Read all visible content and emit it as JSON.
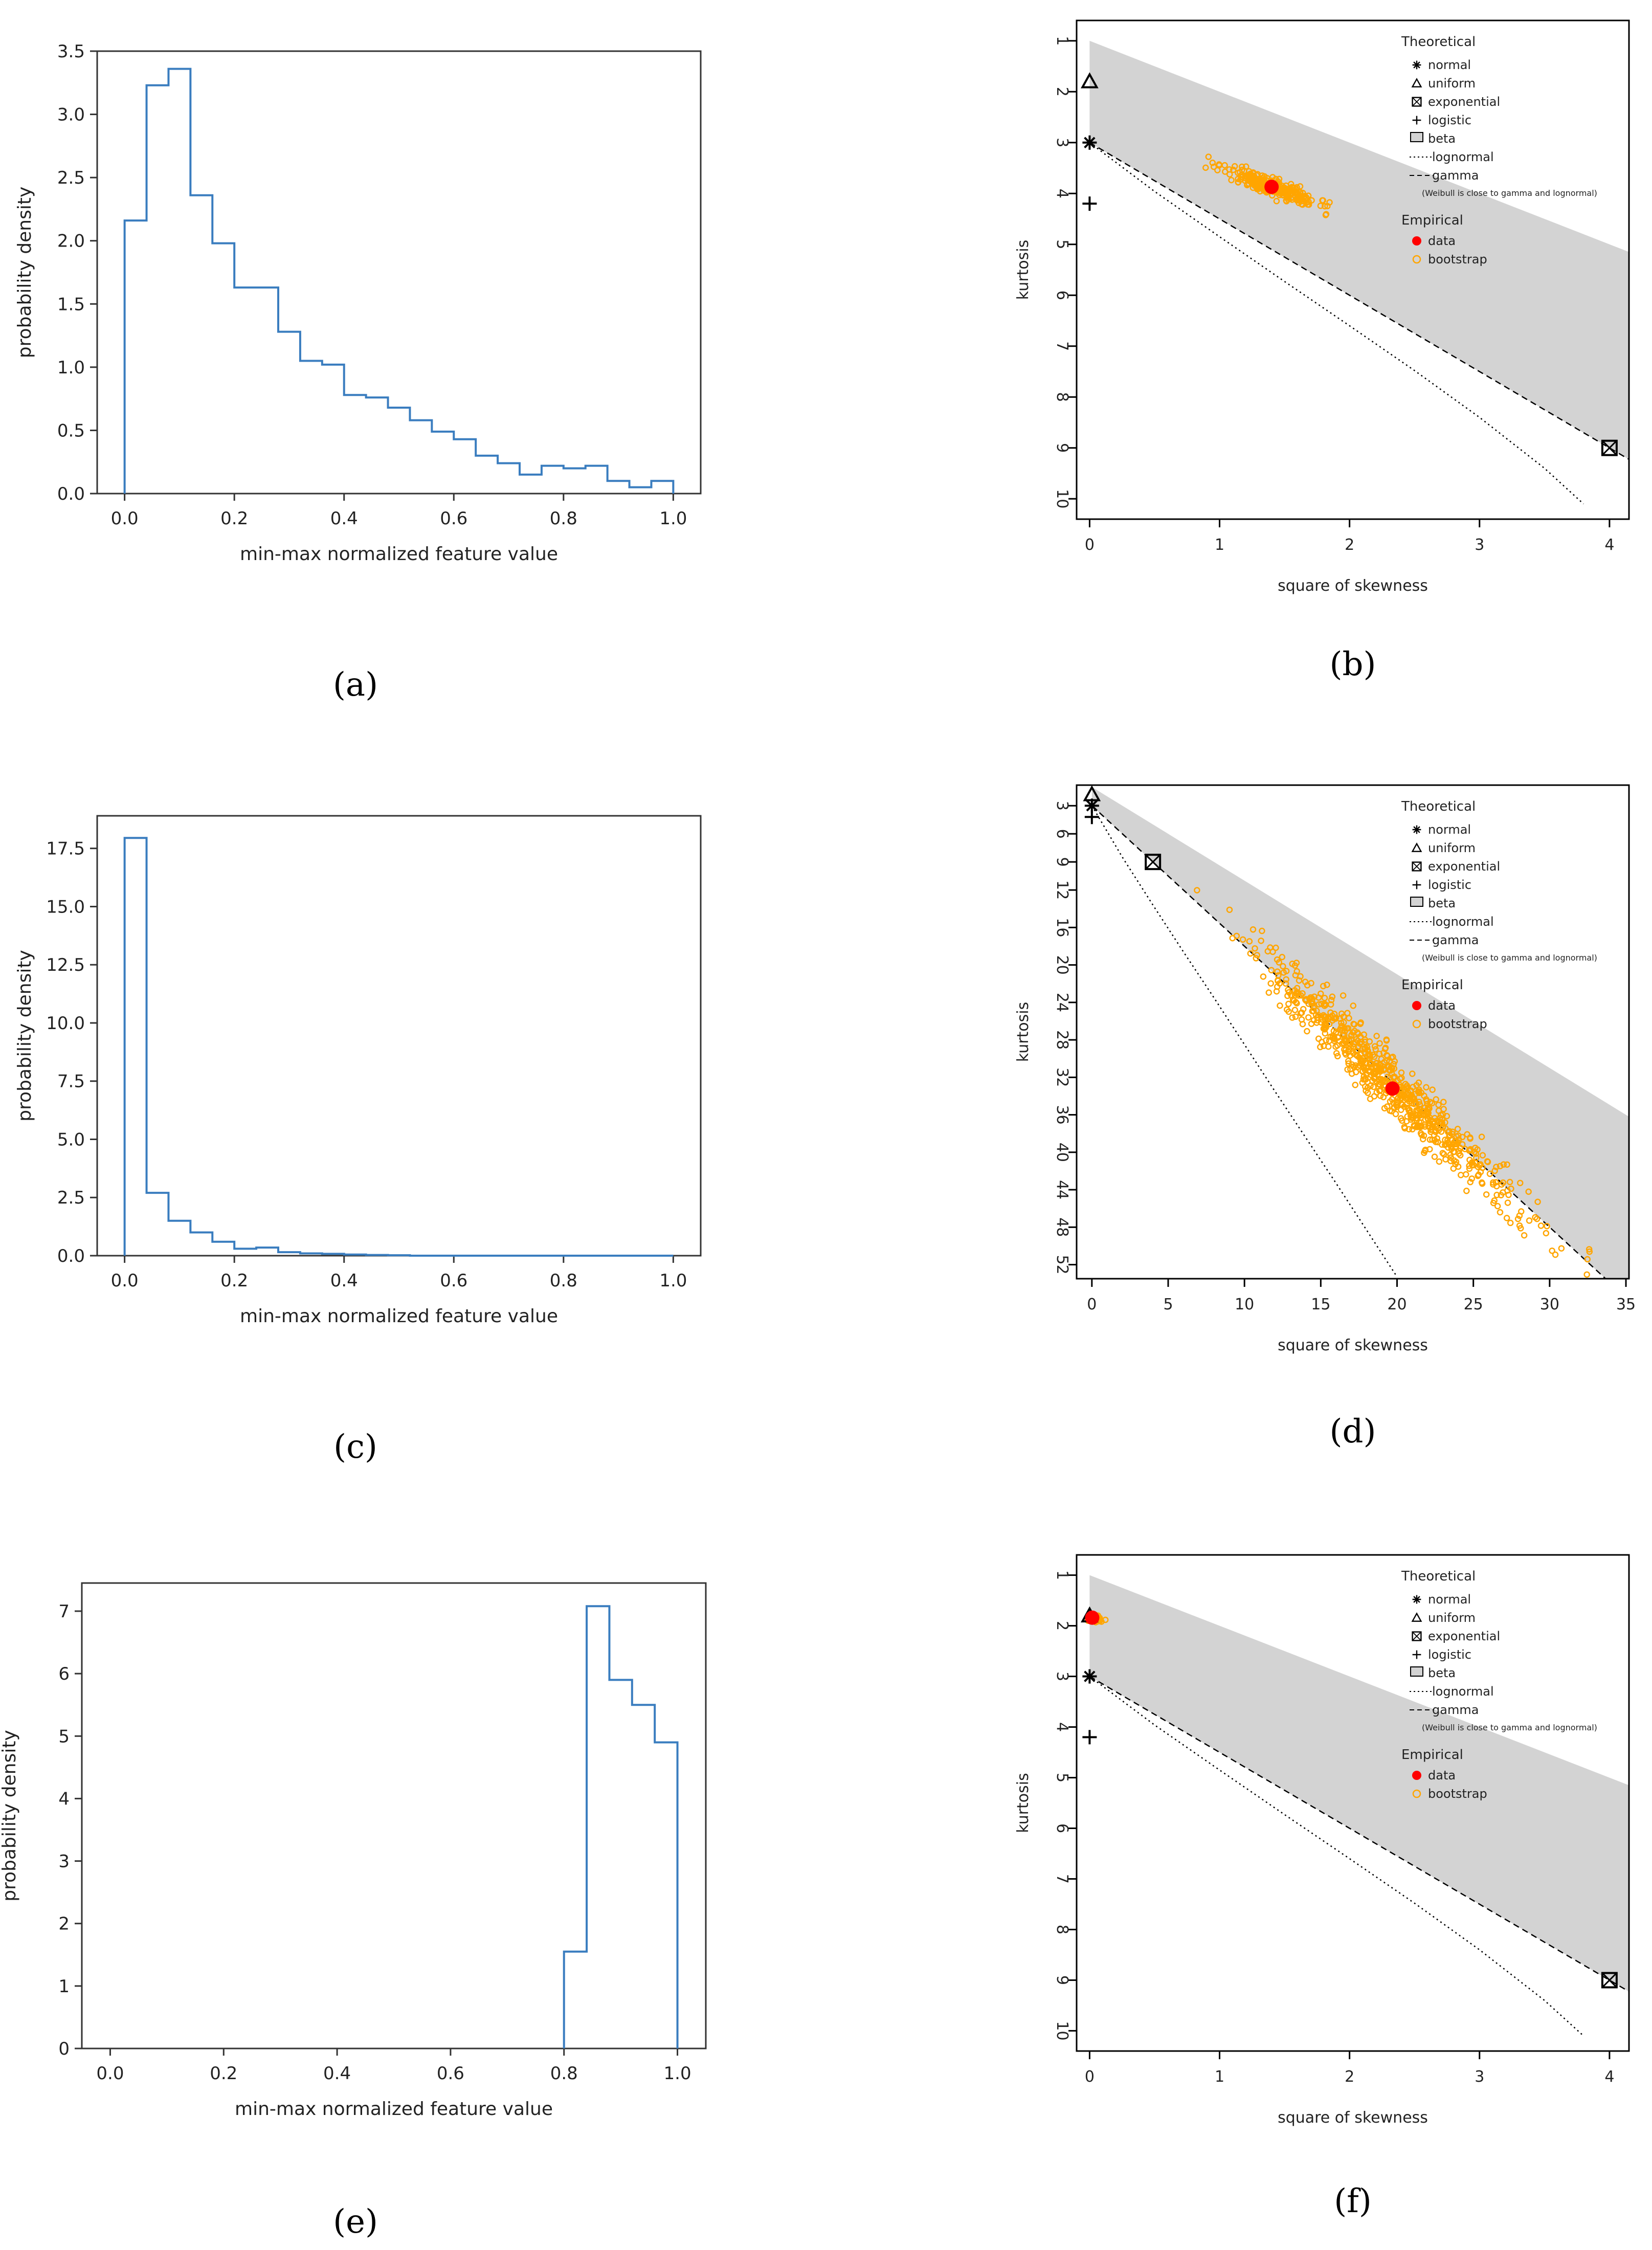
{
  "figure": {
    "panels": [
      {
        "id": "a",
        "caption": "(a)"
      },
      {
        "id": "b",
        "caption": "(b)"
      },
      {
        "id": "c",
        "caption": "(c)"
      },
      {
        "id": "d",
        "caption": "(d)"
      },
      {
        "id": "e",
        "caption": "(e)"
      },
      {
        "id": "f",
        "caption": "(f)"
      }
    ]
  },
  "colors": {
    "hist_line": "#3a7dbf",
    "beta_region": "#d3d3d3",
    "data_point": "#ff0000",
    "bootstrap": "#ffa500",
    "axis": "#000000"
  },
  "chart_data": [
    {
      "id": "a",
      "type": "histogram",
      "xlabel": "min-max normalized feature value",
      "ylabel": "probability density",
      "xlim": [
        -0.05,
        1.05
      ],
      "ylim": [
        0,
        3.5
      ],
      "xticks": [
        "0.0",
        "0.2",
        "0.4",
        "0.6",
        "0.8",
        "1.0"
      ],
      "xtick_values": [
        0,
        0.2,
        0.4,
        0.6,
        0.8,
        1.0
      ],
      "yticks": [
        "0.0",
        "0.5",
        "1.0",
        "1.5",
        "2.0",
        "2.5",
        "3.0",
        "3.5"
      ],
      "ytick_values": [
        0,
        0.5,
        1.0,
        1.5,
        2.0,
        2.5,
        3.0,
        3.5
      ],
      "bin_edges": [
        0,
        0.04,
        0.08,
        0.12,
        0.16,
        0.2,
        0.24,
        0.28,
        0.32,
        0.36,
        0.4,
        0.44,
        0.48,
        0.52,
        0.56,
        0.6,
        0.64,
        0.68,
        0.72,
        0.76,
        0.8,
        0.84,
        0.88,
        0.92,
        0.96,
        1.0
      ],
      "values": [
        2.16,
        3.23,
        3.36,
        2.36,
        1.98,
        1.63,
        1.63,
        1.28,
        1.05,
        1.02,
        0.78,
        0.76,
        0.68,
        0.58,
        0.49,
        0.43,
        0.3,
        0.24,
        0.15,
        0.22,
        0.2,
        0.22,
        0.1,
        0.05,
        0.1
      ]
    },
    {
      "id": "b",
      "type": "cullen-frey",
      "xlabel": "square of skewness",
      "ylabel": "kurtosis",
      "xlim": [
        -0.1,
        4.15
      ],
      "ylim": [
        0.6,
        10.4
      ],
      "xticks": [
        "0",
        "1",
        "2",
        "3",
        "4"
      ],
      "xtick_values": [
        0,
        1,
        2,
        3,
        4
      ],
      "yticks": [
        "1",
        "2",
        "3",
        "4",
        "5",
        "6",
        "7",
        "8",
        "9",
        "10"
      ],
      "ytick_values": [
        1,
        2,
        3,
        4,
        5,
        6,
        7,
        8,
        9,
        10
      ],
      "beta_region": [
        [
          0,
          1
        ],
        [
          4.15,
          5.15
        ],
        [
          4.15,
          9.225
        ],
        [
          0,
          3
        ]
      ],
      "gamma_line": [
        [
          0,
          3
        ],
        [
          4.15,
          9.225
        ]
      ],
      "lognormal_line": [
        [
          0,
          3
        ],
        [
          0.5,
          3.96
        ],
        [
          1,
          4.85
        ],
        [
          1.5,
          5.73
        ],
        [
          2,
          6.6
        ],
        [
          2.5,
          7.48
        ],
        [
          3,
          8.4
        ],
        [
          3.5,
          9.4
        ],
        [
          3.8,
          10.1
        ]
      ],
      "theoretical": [
        {
          "name": "normal",
          "symbol": "asterisk",
          "x": 0,
          "y": 3
        },
        {
          "name": "uniform",
          "symbol": "triangle",
          "x": 0,
          "y": 1.8
        },
        {
          "name": "exponential",
          "symbol": "boxed-x",
          "x": 4,
          "y": 9
        },
        {
          "name": "logistic",
          "symbol": "plus",
          "x": 0,
          "y": 4.2
        }
      ],
      "empirical": {
        "data": {
          "x": 1.4,
          "y": 3.87
        }
      },
      "bootstrap": {
        "center": [
          1.4,
          3.87
        ],
        "spread": [
          0.18,
          0.09
        ],
        "slope": 0.9,
        "n": 260,
        "seed": 11
      },
      "legend": {
        "theoretical_title": "Theoretical",
        "items": [
          "normal",
          "uniform",
          "exponential",
          "logistic",
          "beta",
          "lognormal",
          "gamma"
        ],
        "note": "(Weibull is close to gamma and lognormal)",
        "empirical_title": "Empirical",
        "empirical_items": [
          "data",
          "bootstrap"
        ],
        "position": "top-right"
      }
    },
    {
      "id": "c",
      "type": "histogram",
      "xlabel": "min-max normalized feature value",
      "ylabel": "probability density",
      "xlim": [
        -0.05,
        1.05
      ],
      "ylim": [
        0,
        18.9
      ],
      "xticks": [
        "0.0",
        "0.2",
        "0.4",
        "0.6",
        "0.8",
        "1.0"
      ],
      "xtick_values": [
        0,
        0.2,
        0.4,
        0.6,
        0.8,
        1.0
      ],
      "yticks": [
        "0.0",
        "2.5",
        "5.0",
        "7.5",
        "10.0",
        "12.5",
        "15.0",
        "17.5"
      ],
      "ytick_values": [
        0,
        2.5,
        5.0,
        7.5,
        10.0,
        12.5,
        15.0,
        17.5
      ],
      "bin_edges": [
        0,
        0.04,
        0.08,
        0.12,
        0.16,
        0.2,
        0.24,
        0.28,
        0.32,
        0.36,
        0.4,
        0.44,
        0.48,
        0.52,
        0.56,
        0.6,
        0.64,
        0.68,
        0.72,
        0.76,
        0.8,
        0.84,
        0.88,
        0.92,
        0.96,
        1.0
      ],
      "values": [
        17.95,
        2.7,
        1.5,
        1.0,
        0.6,
        0.3,
        0.35,
        0.15,
        0.1,
        0.08,
        0.05,
        0.03,
        0.02,
        0,
        0,
        0,
        0,
        0,
        0,
        0,
        0,
        0,
        0,
        0,
        0
      ]
    },
    {
      "id": "d",
      "type": "cullen-frey",
      "xlabel": "square of skewness",
      "ylabel": "kurtosis",
      "xlim": [
        -1,
        35.2
      ],
      "ylim": [
        0.8,
        53.5
      ],
      "xticks": [
        "0",
        "5",
        "10",
        "15",
        "20",
        "25",
        "30",
        "35"
      ],
      "xtick_values": [
        0,
        5,
        10,
        15,
        20,
        25,
        30,
        35
      ],
      "yticks": [
        "3",
        "6",
        "9",
        "12",
        "16",
        "20",
        "24",
        "28",
        "32",
        "36",
        "40",
        "44",
        "48",
        "52"
      ],
      "ytick_values": [
        3,
        6,
        9,
        12,
        16,
        20,
        24,
        28,
        32,
        36,
        40,
        44,
        48,
        52
      ],
      "beta_region": [
        [
          0,
          1
        ],
        [
          35.2,
          36.2
        ],
        [
          35.2,
          55.8
        ],
        [
          0,
          3
        ]
      ],
      "gamma_line": [
        [
          0,
          3
        ],
        [
          35.2,
          55.8
        ]
      ],
      "lognormal_line": [
        [
          0,
          3
        ],
        [
          2,
          8.5
        ],
        [
          4,
          13.6
        ],
        [
          6,
          18.6
        ],
        [
          8,
          23.5
        ],
        [
          10,
          28.5
        ],
        [
          12,
          33.5
        ],
        [
          14,
          38.4
        ],
        [
          16,
          43.3
        ],
        [
          18,
          48.3
        ],
        [
          20,
          53.3
        ]
      ],
      "theoretical": [
        {
          "name": "normal",
          "symbol": "asterisk",
          "x": 0,
          "y": 3
        },
        {
          "name": "uniform",
          "symbol": "triangle",
          "x": 0,
          "y": 1.8
        },
        {
          "name": "exponential",
          "symbol": "boxed-x",
          "x": 4,
          "y": 9
        },
        {
          "name": "logistic",
          "symbol": "plus",
          "x": 0,
          "y": 4.2
        }
      ],
      "empirical": {
        "data": {
          "x": 19.7,
          "y": 33.2
        }
      },
      "bootstrap": {
        "center": [
          19.5,
          32.5
        ],
        "spread": [
          4.2,
          1.6
        ],
        "slope": 1.55,
        "n": 750,
        "seed": 7
      },
      "legend": {
        "theoretical_title": "Theoretical",
        "items": [
          "normal",
          "uniform",
          "exponential",
          "logistic",
          "beta",
          "lognormal",
          "gamma"
        ],
        "note": "(Weibull is close to gamma and lognormal)",
        "empirical_title": "Empirical",
        "empirical_items": [
          "data",
          "bootstrap"
        ],
        "position": "top-right"
      }
    },
    {
      "id": "e",
      "type": "histogram",
      "xlabel": "min-max normalized feature value",
      "ylabel": "probability density",
      "xlim": [
        -0.05,
        1.05
      ],
      "ylim": [
        0,
        7.45
      ],
      "xticks": [
        "0.0",
        "0.2",
        "0.4",
        "0.6",
        "0.8",
        "1.0"
      ],
      "xtick_values": [
        0,
        0.2,
        0.4,
        0.6,
        0.8,
        1.0
      ],
      "yticks": [
        "0",
        "1",
        "2",
        "3",
        "4",
        "5",
        "6",
        "7"
      ],
      "ytick_values": [
        0,
        1,
        2,
        3,
        4,
        5,
        6,
        7
      ],
      "bin_edges": [
        0.8,
        0.84,
        0.88,
        0.92,
        0.96,
        1.0
      ],
      "values": [
        1.55,
        7.08,
        5.9,
        5.5,
        4.9
      ]
    },
    {
      "id": "f",
      "type": "cullen-frey",
      "xlabel": "square of skewness",
      "ylabel": "kurtosis",
      "xlim": [
        -0.1,
        4.15
      ],
      "ylim": [
        0.6,
        10.4
      ],
      "xticks": [
        "0",
        "1",
        "2",
        "3",
        "4"
      ],
      "xtick_values": [
        0,
        1,
        2,
        3,
        4
      ],
      "yticks": [
        "1",
        "2",
        "3",
        "4",
        "5",
        "6",
        "7",
        "8",
        "9",
        "10"
      ],
      "ytick_values": [
        1,
        2,
        3,
        4,
        5,
        6,
        7,
        8,
        9,
        10
      ],
      "beta_region": [
        [
          0,
          1
        ],
        [
          4.15,
          5.15
        ],
        [
          4.15,
          9.225
        ],
        [
          0,
          3
        ]
      ],
      "gamma_line": [
        [
          0,
          3
        ],
        [
          4.15,
          9.225
        ]
      ],
      "lognormal_line": [
        [
          0,
          3
        ],
        [
          0.5,
          3.96
        ],
        [
          1,
          4.85
        ],
        [
          1.5,
          5.73
        ],
        [
          2,
          6.6
        ],
        [
          2.5,
          7.48
        ],
        [
          3,
          8.4
        ],
        [
          3.5,
          9.4
        ],
        [
          3.8,
          10.1
        ]
      ],
      "theoretical": [
        {
          "name": "normal",
          "symbol": "asterisk",
          "x": 0,
          "y": 3
        },
        {
          "name": "uniform",
          "symbol": "triangle",
          "x": 0,
          "y": 1.8
        },
        {
          "name": "exponential",
          "symbol": "boxed-x",
          "x": 4,
          "y": 9
        },
        {
          "name": "logistic",
          "symbol": "plus",
          "x": 0,
          "y": 4.2
        }
      ],
      "empirical": {
        "data": {
          "x": 0.02,
          "y": 1.84
        }
      },
      "bootstrap": {
        "center": [
          0.05,
          1.86
        ],
        "spread": [
          0.03,
          0.03
        ],
        "slope": 0.2,
        "n": 50,
        "seed": 3
      },
      "legend": {
        "theoretical_title": "Theoretical",
        "items": [
          "normal",
          "uniform",
          "exponential",
          "logistic",
          "beta",
          "lognormal",
          "gamma"
        ],
        "note": "(Weibull is close to gamma and lognormal)",
        "empirical_title": "Empirical",
        "empirical_items": [
          "data",
          "bootstrap"
        ],
        "position": "top-right"
      }
    }
  ]
}
